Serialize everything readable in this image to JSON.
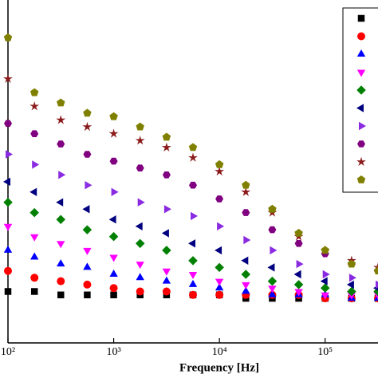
{
  "chart_data": {
    "type": "scatter",
    "x_label": "Frequency [Hz]",
    "xscale": "log",
    "x": [
      100,
      178,
      316,
      562,
      1000,
      1778,
      3162,
      5623,
      10000,
      17783,
      31623,
      56234,
      100000,
      177828,
      316228
    ],
    "xlim": [
      100,
      316228
    ],
    "xticks": [
      {
        "value": 100,
        "label": "10²"
      },
      {
        "value": 1000,
        "label": "10³"
      },
      {
        "value": 10000,
        "label": "10⁴"
      },
      {
        "value": 100000,
        "label": "10⁵"
      }
    ],
    "ylim": [
      0,
      100
    ],
    "legend": "top-right",
    "series": [
      {
        "color": "#000000",
        "marker": "square",
        "values": [
          15,
          15,
          14,
          14,
          14,
          14,
          14,
          14,
          14,
          13,
          13,
          13,
          13,
          13,
          13
        ]
      },
      {
        "color": "#ff0000",
        "marker": "circle",
        "values": [
          21,
          19,
          18,
          17,
          16,
          15,
          15,
          14,
          14,
          14,
          14,
          14,
          13,
          13,
          13
        ]
      },
      {
        "color": "#0000ff",
        "marker": "triangle-up",
        "values": [
          27,
          25,
          23,
          22,
          20,
          19,
          18,
          17,
          16,
          15,
          14,
          14,
          14,
          13,
          13
        ]
      },
      {
        "color": "#ff00ff",
        "marker": "triangle-down",
        "values": [
          34,
          31,
          29,
          27,
          25,
          23,
          21,
          20,
          18,
          17,
          16,
          15,
          14,
          14,
          14
        ]
      },
      {
        "color": "#008000",
        "marker": "diamond",
        "values": [
          41,
          38,
          36,
          33,
          31,
          29,
          27,
          24,
          22,
          20,
          18,
          17,
          16,
          15,
          15
        ]
      },
      {
        "color": "#000080",
        "marker": "triangle-left",
        "values": [
          47,
          44,
          41,
          39,
          36,
          34,
          32,
          29,
          27,
          24,
          22,
          20,
          18,
          17,
          16
        ]
      },
      {
        "color": "#8a2be2",
        "marker": "triangle-right",
        "values": [
          55,
          52,
          49,
          46,
          44,
          41,
          39,
          37,
          34,
          30,
          27,
          23,
          20,
          19,
          17
        ]
      },
      {
        "color": "#800080",
        "marker": "hexagon",
        "values": [
          64,
          61,
          58,
          55,
          53,
          51,
          49,
          46,
          42,
          38,
          33,
          29,
          26,
          23,
          21
        ]
      },
      {
        "color": "#8b1a1a",
        "marker": "star",
        "values": [
          77,
          69,
          65,
          63,
          61,
          59,
          57,
          54,
          50,
          44,
          38,
          31,
          27,
          24,
          22
        ]
      },
      {
        "color": "#808000",
        "marker": "pentagon",
        "values": [
          89,
          73,
          70,
          67,
          66,
          63,
          60,
          57,
          52,
          46,
          39,
          32,
          27,
          23,
          21
        ]
      }
    ]
  }
}
